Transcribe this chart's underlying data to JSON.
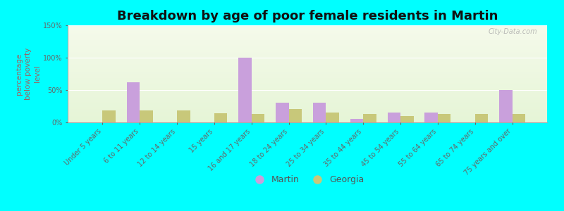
{
  "title": "Breakdown by age of poor female residents in Martin",
  "ylabel": "percentage\nbelow poverty\nlevel",
  "categories": [
    "Under 5 years",
    "6 to 11 years",
    "12 to 14 years",
    "15 years",
    "16 and 17 years",
    "18 to 24 years",
    "25 to 34 years",
    "35 to 44 years",
    "45 to 54 years",
    "55 to 64 years",
    "65 to 74 years",
    "75 years and over"
  ],
  "martin_values": [
    0,
    62,
    0,
    0,
    100,
    30,
    30,
    5,
    15,
    15,
    0,
    50
  ],
  "georgia_values": [
    18,
    18,
    18,
    14,
    13,
    21,
    15,
    13,
    10,
    13,
    13,
    13
  ],
  "martin_color": "#c9a0dc",
  "georgia_color": "#c8c87a",
  "ylim": [
    0,
    150
  ],
  "yticks": [
    0,
    50,
    100,
    150
  ],
  "ytick_labels": [
    "0%",
    "50%",
    "100%",
    "150%"
  ],
  "background_color": "#00ffff",
  "bar_width": 0.35,
  "title_fontsize": 13,
  "axis_label_fontsize": 7.5,
  "tick_fontsize": 7,
  "legend_labels": [
    "Martin",
    "Georgia"
  ],
  "watermark": "City-Data.com"
}
